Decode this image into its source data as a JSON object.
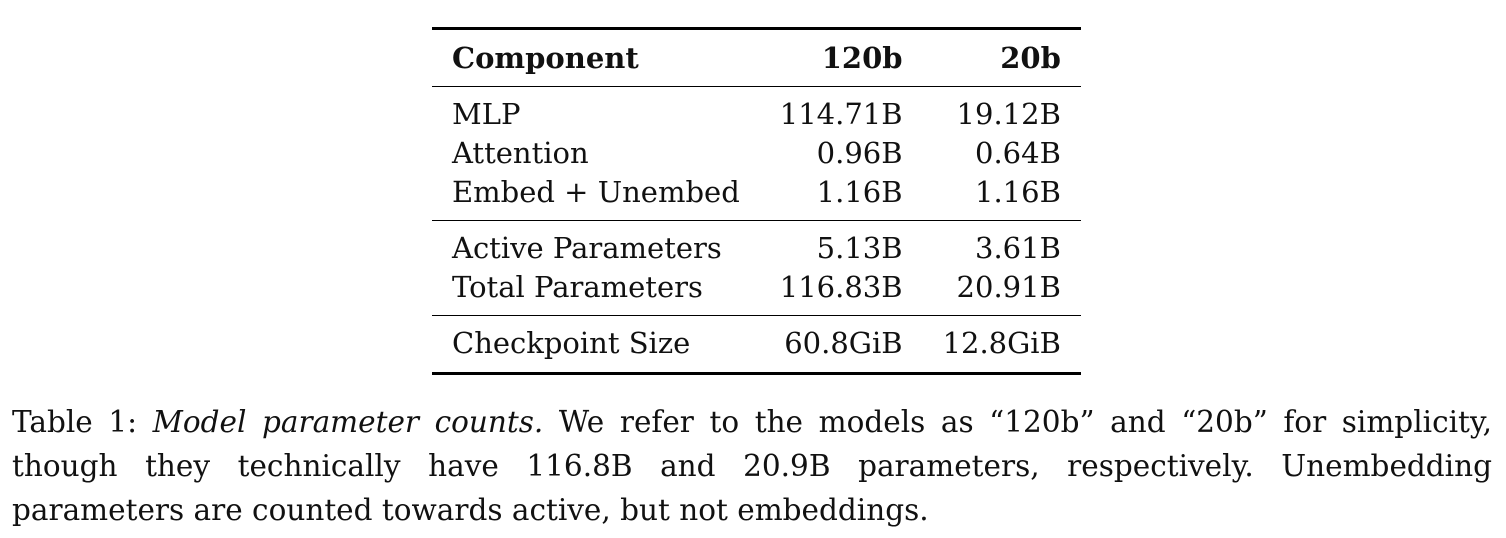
{
  "table": {
    "headers": [
      "Component",
      "120b",
      "20b"
    ],
    "groups": [
      [
        {
          "component": "MLP",
          "v120b": "114.71B",
          "v20b": "19.12B"
        },
        {
          "component": "Attention",
          "v120b": "0.96B",
          "v20b": "0.64B"
        },
        {
          "component": "Embed + Unembed",
          "v120b": "1.16B",
          "v20b": "1.16B"
        }
      ],
      [
        {
          "component": "Active Parameters",
          "v120b": "5.13B",
          "v20b": "3.61B"
        },
        {
          "component": "Total Parameters",
          "v120b": "116.83B",
          "v20b": "20.91B"
        }
      ],
      [
        {
          "component": "Checkpoint Size",
          "v120b": "60.8GiB",
          "v20b": "12.8GiB"
        }
      ]
    ]
  },
  "caption": {
    "label": "Table 1:",
    "title": "Model parameter counts.",
    "text": "We refer to the models as “120b” and “20b” for simplicity, though they technically have 116.8B and 20.9B parameters, respectively. Unembedding parameters are counted towards active, but not embeddings."
  }
}
